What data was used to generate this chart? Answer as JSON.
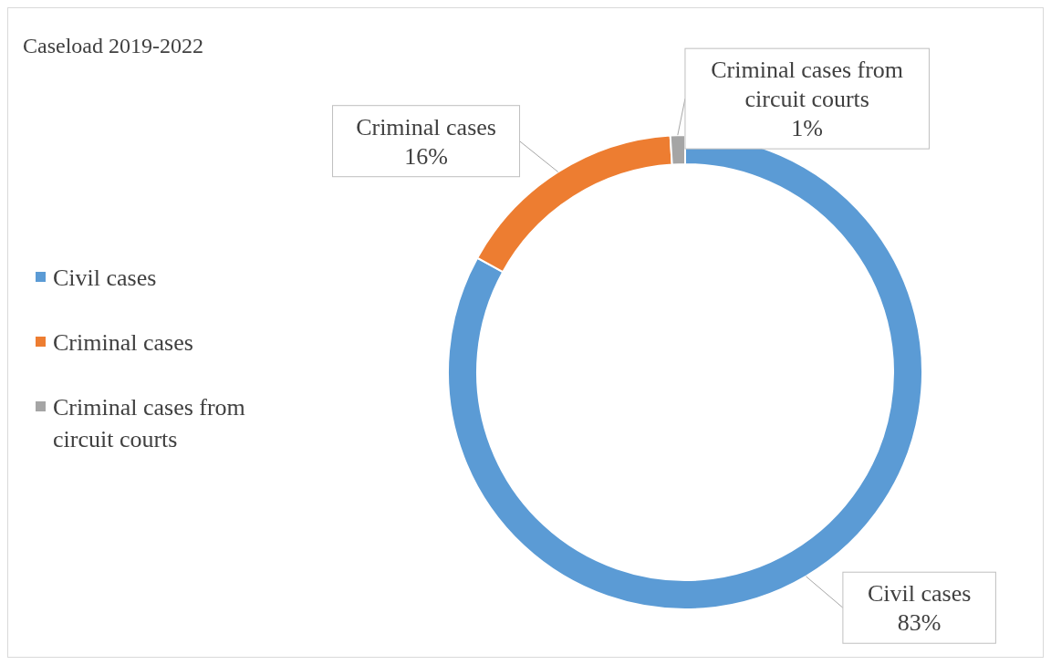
{
  "chart_data": {
    "type": "donut",
    "title": "Caseload 2019-2022",
    "categories": [
      "Civil cases",
      "Criminal cases",
      "Criminal cases from circuit courts"
    ],
    "values": [
      83,
      16,
      1
    ],
    "colors": [
      "#5b9bd5",
      "#ed7d31",
      "#a5a5a5"
    ],
    "value_labels": [
      "83%",
      "16%",
      "1%"
    ],
    "legend": "left"
  }
}
